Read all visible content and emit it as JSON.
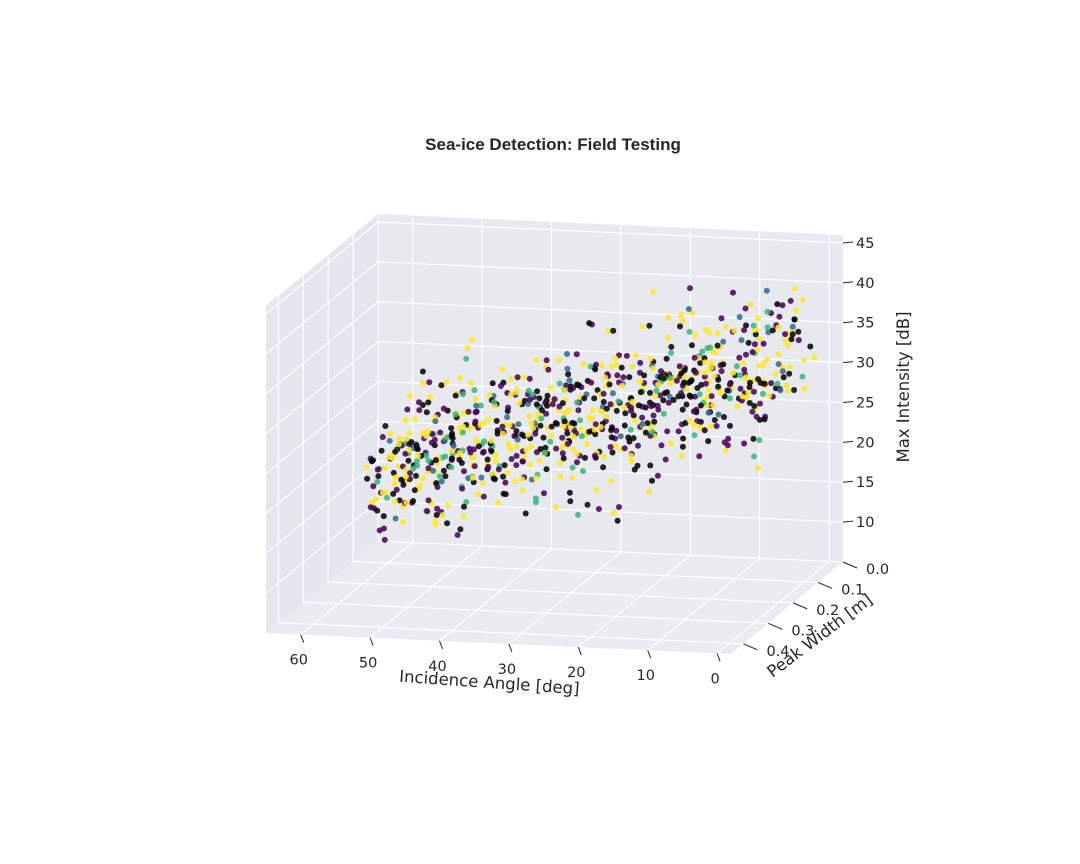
{
  "chart_data": {
    "type": "scatter",
    "projection": "3d",
    "title": "Sea-ice Detection: Field Testing",
    "xlabel": "Incidence Angle [deg]",
    "ylabel": "Peak Width [m]",
    "zlabel": "Max Intensity [dB]",
    "xticks": [
      "0",
      "10",
      "20",
      "30",
      "40",
      "50",
      "60"
    ],
    "yticks": [
      "0.0",
      "0.1",
      "0.2",
      "0.3",
      "0.4"
    ],
    "zticks": [
      "10",
      "15",
      "20",
      "25",
      "30",
      "35",
      "40",
      "45"
    ],
    "xlim": [
      -2,
      65
    ],
    "ylim": [
      0,
      0.45
    ],
    "zlim": [
      5,
      46
    ],
    "grid": true,
    "legend": "none",
    "color_map": "viridis",
    "colors": [
      "#000000",
      "#440154",
      "#31688e",
      "#35b779",
      "#fde725"
    ],
    "point_count": 900,
    "trend": "Max Intensity decreases roughly linearly from about 33 dB at 0 deg to about 17 dB at 60 deg, with spread of roughly ±6 dB",
    "samples": [
      {
        "x": 2,
        "y": 0.05,
        "z": 39
      },
      {
        "x": 3,
        "y": 0.08,
        "z": 34
      },
      {
        "x": 5,
        "y": 0.12,
        "z": 30
      },
      {
        "x": 8,
        "y": 0.04,
        "z": 33
      },
      {
        "x": 12,
        "y": 0.15,
        "z": 27
      },
      {
        "x": 15,
        "y": 0.06,
        "z": 30
      },
      {
        "x": 20,
        "y": 0.18,
        "z": 25
      },
      {
        "x": 25,
        "y": 0.1,
        "z": 27
      },
      {
        "x": 28,
        "y": 0.2,
        "z": 22
      },
      {
        "x": 30,
        "y": 0.05,
        "z": 34
      },
      {
        "x": 35,
        "y": 0.14,
        "z": 23
      },
      {
        "x": 40,
        "y": 0.09,
        "z": 24
      },
      {
        "x": 45,
        "y": 0.22,
        "z": 18
      },
      {
        "x": 50,
        "y": 0.12,
        "z": 20
      },
      {
        "x": 55,
        "y": 0.16,
        "z": 17
      },
      {
        "x": 60,
        "y": 0.08,
        "z": 18
      }
    ]
  }
}
